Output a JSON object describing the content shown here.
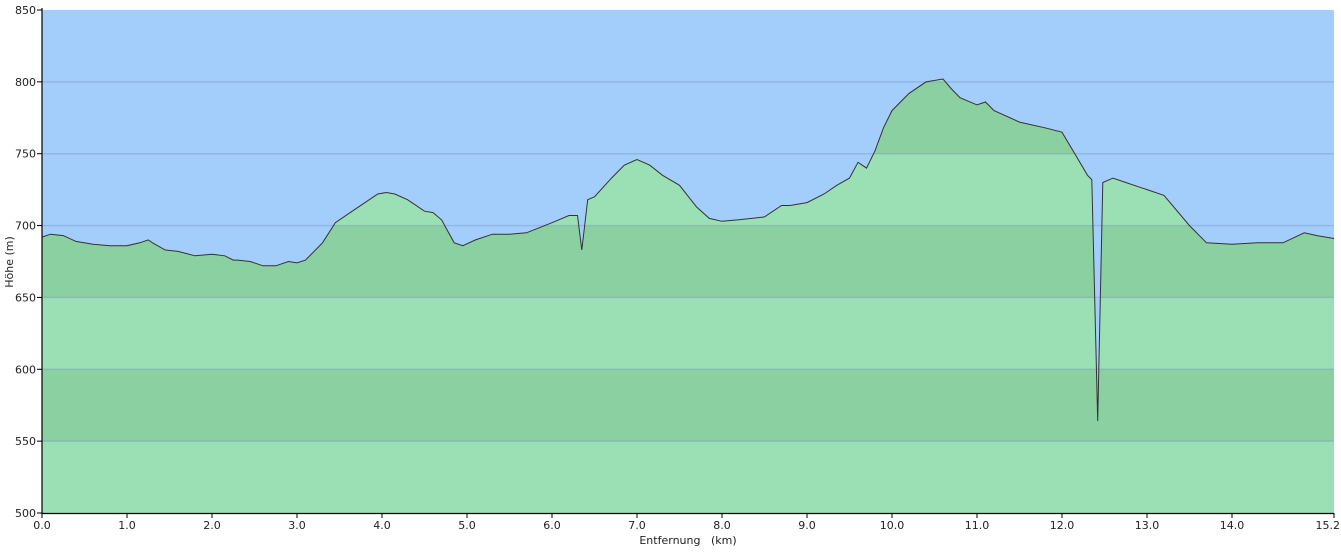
{
  "chart_data": {
    "type": "area",
    "title": "",
    "xlabel": "Entfernung   (km)",
    "ylabel": "Höhe (m)",
    "xlim": [
      0,
      15.2
    ],
    "ylim": [
      500,
      850
    ],
    "x_ticks": [
      "0.0",
      "1.0",
      "2.0",
      "3.0",
      "4.0",
      "5.0",
      "6.0",
      "7.0",
      "8.0",
      "9.0",
      "10.0",
      "11.0",
      "12.0",
      "13.0",
      "14.0",
      "15.2"
    ],
    "x_tick_values": [
      0,
      1,
      2,
      3,
      4,
      5,
      6,
      7,
      8,
      9,
      10,
      11,
      12,
      13,
      14,
      15.2
    ],
    "y_ticks": [
      "500",
      "550",
      "600",
      "650",
      "700",
      "750",
      "800",
      "850"
    ],
    "y_tick_values": [
      500,
      550,
      600,
      650,
      700,
      750,
      800,
      850
    ],
    "grid": true,
    "colors": {
      "sky": "#a3cdfa",
      "ground_light": "#9be0b4",
      "ground_dark": "#8bd0a0",
      "line": "#333333"
    },
    "series": [
      {
        "x": [
          0.0,
          0.1,
          0.25,
          0.4,
          0.6,
          0.8,
          1.0,
          1.15,
          1.25,
          1.3,
          1.45,
          1.6,
          1.8,
          2.0,
          2.15,
          2.25,
          2.3,
          2.45,
          2.6,
          2.75,
          2.9,
          3.0,
          3.1,
          3.3,
          3.45,
          3.6,
          3.8,
          3.95,
          4.05,
          4.15,
          4.3,
          4.5,
          4.6,
          4.7,
          4.85,
          4.95,
          5.1,
          5.3,
          5.5,
          5.7,
          6.0,
          6.2,
          6.3,
          6.35,
          6.42,
          6.5,
          6.7,
          6.85,
          7.0,
          7.15,
          7.3,
          7.5,
          7.7,
          7.85,
          8.0,
          8.2,
          8.5,
          8.7,
          8.8,
          9.0,
          9.2,
          9.35,
          9.5,
          9.6,
          9.7,
          9.8,
          9.9,
          10.0,
          10.2,
          10.4,
          10.6,
          10.7,
          10.8,
          11.0,
          11.1,
          11.2,
          11.5,
          11.8,
          12.0,
          12.15,
          12.3,
          12.35,
          12.42,
          12.48,
          12.6,
          12.75,
          12.9,
          13.0,
          13.2,
          13.5,
          13.7,
          14.0,
          14.3,
          14.6,
          14.85,
          15.0,
          15.2
        ],
        "y": [
          692,
          694,
          693,
          689,
          687,
          686,
          686,
          688,
          690,
          688,
          683,
          682,
          679,
          680,
          679,
          676,
          676,
          675,
          672,
          672,
          675,
          674,
          676,
          688,
          702,
          708,
          716,
          722,
          723,
          722,
          718,
          710,
          709,
          704,
          688,
          686,
          690,
          694,
          694,
          695,
          702,
          707,
          707,
          683,
          718,
          720,
          733,
          742,
          746,
          742,
          735,
          728,
          713,
          705,
          703,
          704,
          706,
          714,
          714,
          716,
          722,
          728,
          733,
          744,
          740,
          752,
          768,
          780,
          792,
          800,
          802,
          795,
          789,
          784,
          786,
          780,
          772,
          768,
          765,
          750,
          735,
          732,
          564,
          730,
          733,
          730,
          727,
          725,
          721,
          700,
          688,
          687,
          688,
          688,
          695,
          693,
          691
        ]
      }
    ]
  }
}
